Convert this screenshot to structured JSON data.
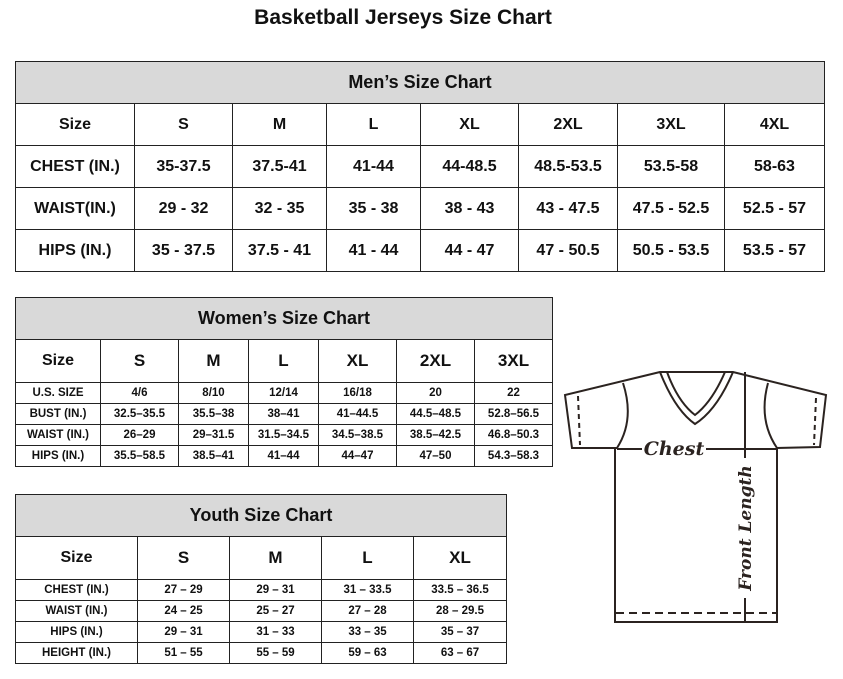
{
  "title": "Basketball Jerseys Size Chart",
  "men": {
    "heading": "Men’s Size Chart",
    "header": [
      "Size",
      "S",
      "M",
      "L",
      "XL",
      "2XL",
      "3XL",
      "4XL"
    ],
    "rows": [
      [
        "CHEST (IN.)",
        "35-37.5",
        "37.5-41",
        "41-44",
        "44-48.5",
        "48.5-53.5",
        "53.5-58",
        "58-63"
      ],
      [
        "WAIST(IN.)",
        "29 - 32",
        "32 - 35",
        "35 - 38",
        "38 - 43",
        "43 - 47.5",
        "47.5 - 52.5",
        "52.5 - 57"
      ],
      [
        "HIPS (IN.)",
        "35 - 37.5",
        "37.5 - 41",
        "41 - 44",
        "44 - 47",
        "47 - 50.5",
        "50.5 - 53.5",
        "53.5 - 57"
      ]
    ]
  },
  "women": {
    "heading": "Women’s Size Chart",
    "header": [
      "Size",
      "S",
      "M",
      "L",
      "XL",
      "2XL",
      "3XL"
    ],
    "rows": [
      [
        "U.S.  SIZE",
        "4/6",
        "8/10",
        "12/14",
        "16/18",
        "20",
        "22"
      ],
      [
        "BUST  (IN.)",
        "32.5–35.5",
        "35.5–38",
        "38–41",
        "41–44.5",
        "44.5–48.5",
        "52.8–56.5"
      ],
      [
        "WAIST  (IN.)",
        "26–29",
        "29–31.5",
        "31.5–34.5",
        "34.5–38.5",
        "38.5–42.5",
        "46.8–50.3"
      ],
      [
        "HIPS  (IN.)",
        "35.5–58.5",
        "38.5–41",
        "41–44",
        "44–47",
        "47–50",
        "54.3–58.3"
      ]
    ]
  },
  "youth": {
    "heading": "Youth Size Chart",
    "header": [
      "Size",
      "S",
      "M",
      "L",
      "XL"
    ],
    "rows": [
      [
        "CHEST  (IN.)",
        "27  –  29",
        "29  –  31",
        "31  –  33.5",
        "33.5  –  36.5"
      ],
      [
        "WAIST  (IN.)",
        "24  –  25",
        "25  –  27",
        "27  –  28",
        "28  –  29.5"
      ],
      [
        "HIPS  (IN.)",
        "29  –  31",
        "31  –  33",
        "33  –  35",
        "35  –  37"
      ],
      [
        "HEIGHT  (IN.)",
        "51  –  55",
        "55  –  59",
        "59  –  63",
        "63  –  67"
      ]
    ]
  },
  "diagram": {
    "chest_label": "Chest",
    "length_label": "Front Length"
  },
  "colors": {
    "header_bg": "#d9d9d9",
    "line": "#2b2320"
  }
}
